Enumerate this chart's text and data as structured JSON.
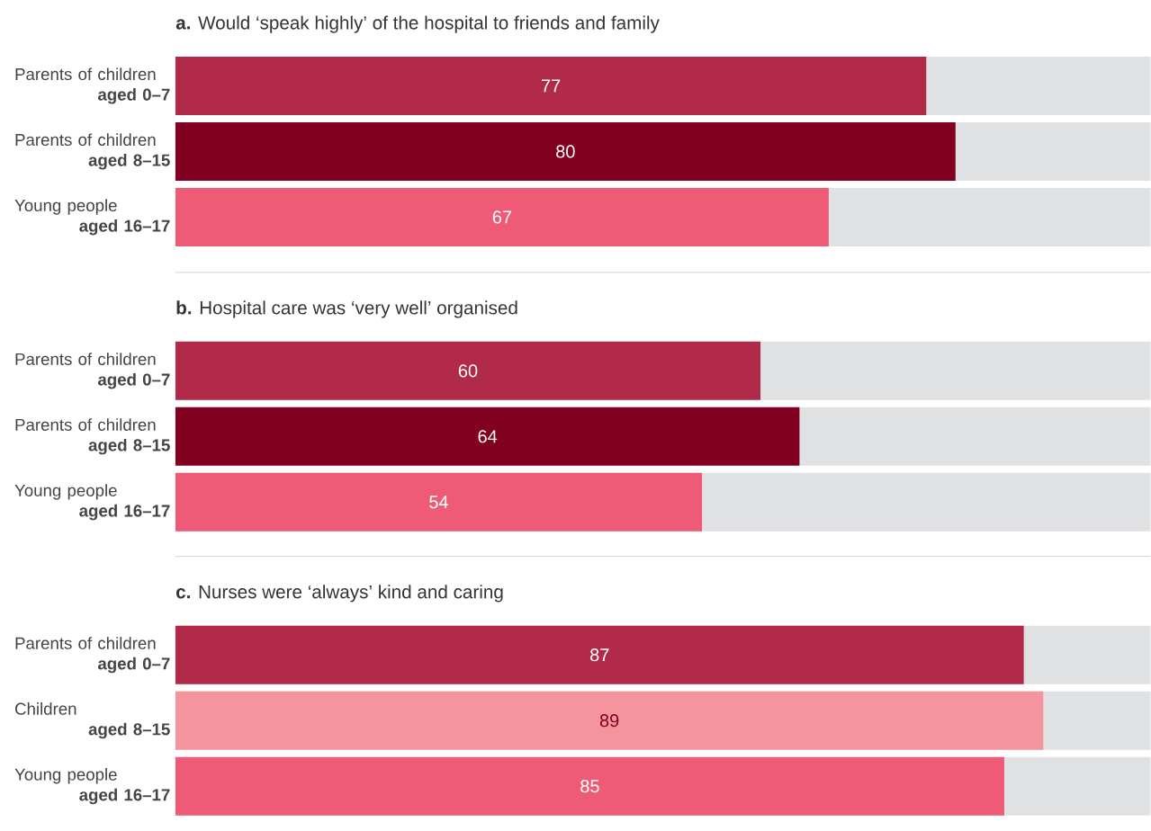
{
  "chart_data": [
    {
      "type": "bar",
      "orientation": "horizontal",
      "title": "**a.** Would ‘speak highly’ of the hospital to friends and family",
      "categories": [
        "Parents of children **aged 0–7**",
        "Parents of children **aged 8–15**",
        "Young people **aged 16–17**"
      ],
      "values": [
        77,
        80,
        67
      ],
      "colors": [
        "#b22a4a",
        "#820020",
        "#ef5a76"
      ],
      "xlim": [
        0,
        100
      ],
      "data_labels": true,
      "tick_labels": "y"
    },
    {
      "type": "bar",
      "orientation": "horizontal",
      "title": "**b.** Hospital care was ‘very well’ organised",
      "categories": [
        "Parents of children **aged 0–7**",
        "Parents of children **aged 8–15**",
        "Young people **aged 16–17**"
      ],
      "values": [
        60,
        64,
        54
      ],
      "colors": [
        "#b22a4a",
        "#820020",
        "#ef5a76"
      ],
      "xlim": [
        0,
        100
      ],
      "data_labels": true,
      "tick_labels": "y"
    },
    {
      "type": "bar",
      "orientation": "horizontal",
      "title": "**c.** Nurses were ‘always’ kind and caring",
      "categories": [
        "Parents of children **aged 0–7**",
        "Children **aged 8–15**",
        "Young people **aged 16–17**"
      ],
      "values": [
        87,
        89,
        85
      ],
      "colors": [
        "#b22a4a",
        "#f4959d",
        "#ef5a76"
      ],
      "xlim": [
        0,
        100
      ],
      "data_labels": true,
      "tick_labels": "y"
    }
  ]
}
